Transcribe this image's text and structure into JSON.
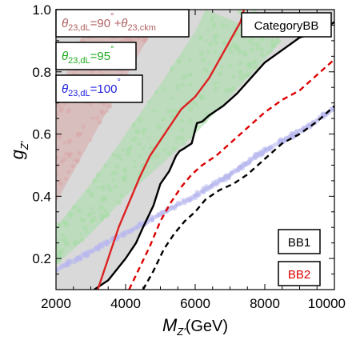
{
  "chart_data": {
    "type": "scatter",
    "xlim": [
      2000,
      10000
    ],
    "ylim": [
      0.1,
      1.0
    ],
    "x_ticks": [
      "2000",
      "4000",
      "6000",
      "8000",
      "10000"
    ],
    "y_ticks": [
      "0.2",
      "0.4",
      "0.6",
      "0.8",
      "1.0"
    ],
    "xlabel_main": "M",
    "xlabel_sub": "Z'",
    "xlabel_unit": "(GeV)",
    "ylabel_main": "g",
    "ylabel_sub": "Z'",
    "category_label": "CategoryBB",
    "regions": [
      {
        "label_parts": [
          "θ",
          "23,dL",
          "=90",
          "°",
          "+θ",
          "23,ckm"
        ],
        "color": "#b06060",
        "fill": "#d8a8a8",
        "lower": [
          [
            2000,
            0.38
          ],
          [
            3000,
            0.58
          ],
          [
            4000,
            0.78
          ],
          [
            5000,
            0.98
          ],
          [
            5150,
            1.0
          ]
        ],
        "upper": [
          [
            2000,
            0.72
          ],
          [
            2400,
            0.82
          ],
          [
            3000,
            0.98
          ],
          [
            3100,
            1.0
          ]
        ]
      },
      {
        "label_parts": [
          "θ",
          "23,dL",
          "=95",
          "°"
        ],
        "color": "#22aa22",
        "fill": "#a6dca6",
        "lower": [
          [
            2000,
            0.18
          ],
          [
            3000,
            0.28
          ],
          [
            4000,
            0.4
          ],
          [
            5000,
            0.5
          ],
          [
            6000,
            0.6
          ],
          [
            7000,
            0.72
          ],
          [
            8000,
            0.84
          ],
          [
            8500,
            0.9
          ]
        ],
        "upper": [
          [
            2000,
            0.3
          ],
          [
            3000,
            0.44
          ],
          [
            4000,
            0.6
          ],
          [
            5000,
            0.76
          ],
          [
            6000,
            0.93
          ],
          [
            6300,
            1.0
          ]
        ]
      },
      {
        "label_parts": [
          "θ",
          "23,dL",
          "=100",
          "°"
        ],
        "color": "#2222dd",
        "fill": "#b8b8ee",
        "lower": [
          [
            2000,
            0.155
          ],
          [
            3000,
            0.215
          ],
          [
            4000,
            0.275
          ],
          [
            5000,
            0.335
          ],
          [
            6000,
            0.395
          ],
          [
            7000,
            0.46
          ],
          [
            8000,
            0.54
          ],
          [
            9000,
            0.6
          ],
          [
            10000,
            0.675
          ]
        ],
        "upper": [
          [
            2000,
            0.17
          ],
          [
            3000,
            0.23
          ],
          [
            4000,
            0.29
          ],
          [
            5000,
            0.35
          ],
          [
            6000,
            0.41
          ],
          [
            7000,
            0.475
          ],
          [
            8000,
            0.555
          ],
          [
            9000,
            0.615
          ],
          [
            10000,
            0.69
          ]
        ]
      }
    ],
    "excluded_region": {
      "color": "#d9d9d9",
      "boundary": [
        [
          2000,
          0.1
        ],
        [
          2000,
          1.0
        ],
        [
          10000,
          1.0
        ],
        [
          10000,
          0.96
        ],
        [
          9600,
          0.93
        ],
        [
          9000,
          0.91
        ],
        [
          8500,
          0.87
        ],
        [
          8000,
          0.83
        ],
        [
          7600,
          0.78
        ],
        [
          7200,
          0.73
        ],
        [
          6800,
          0.69
        ],
        [
          6400,
          0.66
        ],
        [
          6200,
          0.64
        ],
        [
          6050,
          0.635
        ],
        [
          5900,
          0.57
        ],
        [
          5700,
          0.555
        ],
        [
          5550,
          0.545
        ],
        [
          5450,
          0.53
        ],
        [
          5250,
          0.48
        ],
        [
          5000,
          0.44
        ],
        [
          4800,
          0.37
        ],
        [
          4500,
          0.3
        ],
        [
          4300,
          0.25
        ],
        [
          4000,
          0.2
        ],
        [
          3500,
          0.13
        ],
        [
          3100,
          0.1
        ]
      ]
    },
    "series": [
      {
        "name": "BB1",
        "color": "#000000",
        "dash": "none",
        "x": [
          3100,
          3500,
          4000,
          4300,
          4500,
          4800,
          5000,
          5250,
          5450,
          5550,
          5700,
          5900,
          6050,
          6200,
          6400,
          6800,
          7200,
          7600,
          8000,
          8500,
          9000,
          9600,
          10000
        ],
        "y": [
          0.1,
          0.13,
          0.2,
          0.25,
          0.3,
          0.37,
          0.44,
          0.48,
          0.53,
          0.545,
          0.555,
          0.57,
          0.635,
          0.64,
          0.66,
          0.69,
          0.73,
          0.78,
          0.83,
          0.87,
          0.91,
          0.93,
          0.96
        ]
      },
      {
        "name": "BB2",
        "color": "#dd0000",
        "dash": "7,5",
        "x": [
          4100,
          4400,
          4700,
          5000,
          5300,
          5600,
          5900,
          6200,
          6600,
          7000,
          7500,
          8000,
          8500,
          9000,
          9500,
          10000
        ],
        "y": [
          0.1,
          0.17,
          0.24,
          0.32,
          0.38,
          0.43,
          0.47,
          0.5,
          0.53,
          0.57,
          0.62,
          0.67,
          0.71,
          0.74,
          0.79,
          0.84
        ]
      },
      {
        "name": "",
        "color": "#000000",
        "dash": "7,5",
        "x": [
          4500,
          4800,
          5100,
          5400,
          5700,
          6000,
          6300,
          6700,
          7100,
          7500,
          8000,
          8500,
          9000,
          9500,
          10000
        ],
        "y": [
          0.1,
          0.16,
          0.23,
          0.28,
          0.32,
          0.35,
          0.39,
          0.42,
          0.44,
          0.47,
          0.52,
          0.57,
          0.6,
          0.64,
          0.69
        ]
      },
      {
        "name": "",
        "color": "#dd2222",
        "dash": "none",
        "x": [
          3200,
          3500,
          3800,
          4100,
          4400,
          4700,
          5000,
          5300,
          5600,
          6000,
          6400,
          6800,
          7000,
          7300,
          7400
        ],
        "y": [
          0.1,
          0.2,
          0.3,
          0.38,
          0.46,
          0.53,
          0.58,
          0.63,
          0.68,
          0.72,
          0.78,
          0.86,
          0.9,
          0.96,
          1.0
        ]
      }
    ],
    "legend": {
      "region_placement": "top-left",
      "line_placement": "bottom-right"
    }
  }
}
